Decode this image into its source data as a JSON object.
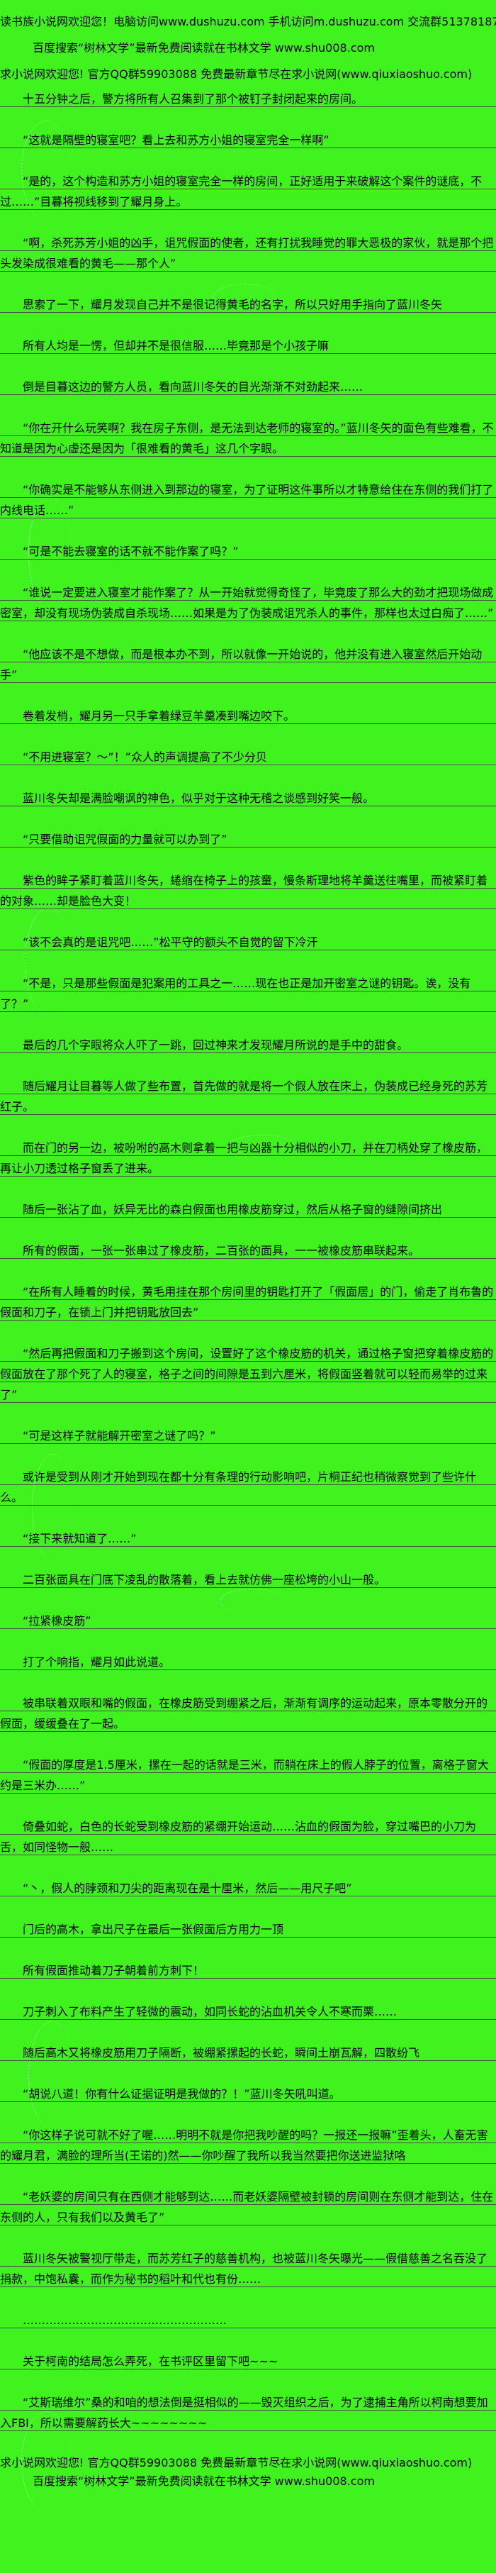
{
  "page": {
    "background_color": "#40F21E",
    "rule_line_color": "#4b4b4b",
    "text_color": "#000000"
  },
  "header": {
    "lines": [
      "读书族小说网欢迎您！电脑访问www.dushuzu.com 手机访问m.dushuzu.com 交流群513781872",
      "百度搜索“树林文学”最新免费阅读就在书林文学 www.shu008.com",
      "求小说网欢迎您! 官方QQ群59903088 免费最新章节尽在求小说网(www.qiuxiaoshuo.com)"
    ]
  },
  "content": {
    "paragraphs": [
      "十五分钟之后，警方将所有人召集到了那个被钉子封闭起来的房间。",
      "“这就是隔壁的寝室吧？看上去和苏方小姐的寝室完全一样啊”",
      "“是的，这个构造和苏方小姐的寝室完全一样的房间，正好适用于来破解这个案件的谜底，不过……”目暮将视线移到了耀月身上。",
      "“啊，杀死苏芳小姐的凶手，诅咒假面的使者，还有打扰我睡觉的罪大恶极的家伙，就是那个把头发染成很难看的黄毛——那个人”",
      "思索了一下，耀月发现自己并不是很记得黄毛的名字，所以只好用手指向了蓝川冬矢",
      "所有人均是一愣，但却并不是很信服……毕竟那是个小孩子嘛",
      "倒是目暮这边的警方人员，看向蓝川冬矢的目光渐渐不对劲起来……",
      "“你在开什么玩笑啊？我在房子东侧，是无法到达老师的寝室的。”蓝川冬矢的面色有些难看，不知道是因为心虚还是因为「很难看的黄毛」这几个字眼。",
      "“你确实是不能够从东侧进入到那边的寝室，为了证明这件事所以才特意给住在东侧的我们打了内线电话……”",
      "“可是不能去寝室的话不就不能作案了吗？”",
      "“谁说一定要进入寝室才能作案了？从一开始就觉得奇怪了，毕竟废了那么大的劲才把现场做成密室，却没有现场伪装成自杀现场……如果是为了伪装成诅咒杀人的事件，那样也太过白痴了……”",
      "“他应该不是不想做，而是根本办不到，所以就像一开始说的，他并没有进入寝室然后开始动手”",
      "卷着发梢，耀月另一只手拿着绿豆羊羹凑到嘴边咬下。",
      "“不用进寝室？～”！”众人的声调提高了不少分贝",
      "蓝川冬矢却是满脸嘲讽的神色，似乎对于这种无稽之谈感到好笑一般。",
      "“只要借助诅咒假面的力量就可以办到了”",
      "紫色的眸子紧盯着蓝川冬矢，蜷缩在椅子上的孩童，慢条斯理地将羊羹送往嘴里，而被紧盯着的对象……却是脸色大变！",
      "“该不会真的是诅咒吧……”松平守的额头不自觉的留下冷汗",
      "“不是，只是那些假面是犯案用的工具之一……现在也正是加开密室之谜的钥匙。诶，没有了？”",
      "最后的几个字眼将众人吓了一跳，回过神来才发现耀月所说的是手中的甜食。",
      "随后耀月让目暮等人做了些布置，首先做的就是将一个假人放在床上，伪装成已经身死的苏芳红子。",
      "而在门的另一边，被吩咐的高木则拿着一把与凶器十分相似的小刀，并在刀柄处穿了橡皮筋，再让小刀透过格子窗丢了进来。",
      "随后一张沾了血，妖异无比的森白假面也用橡皮筋穿过，然后从格子窗的缝隙间挤出",
      "所有的假面，一张一张串过了橡皮筋，二百张的面具，一一被橡皮筋串联起来。",
      "“在所有人睡着的时候，黄毛用挂在那个房间里的钥匙打开了「假面居」的门，偷走了肖布鲁的假面和刀子，在锁上门并把钥匙放回去”",
      "“然后再把假面和刀子搬到这个房间，设置好了这个橡皮筋的机关，通过格子窗把穿着橡皮筋的假面放在了那个死了人的寝室，格子之间的间隙是五到六厘米，将假面竖着就可以轻而易举的过来了”",
      "“可是这样子就能解开密室之谜了吗？”",
      "或许是受到从刚才开始到现在都十分有条理的行动影响吧，片桐正纪也稍微察觉到了些许什么。",
      "“接下来就知道了……”",
      "二百张面具在门底下凌乱的散落着，看上去就仿佛一座松垮的小山一般。",
      "“拉紧橡皮筋”",
      "打了个响指，耀月如此说道。",
      "被串联着双眼和嘴的假面，在橡皮筋受到绷紧之后，渐渐有调序的运动起来，原本零散分开的假面，缓缓叠在了一起。",
      "“假面的厚度是1.5厘米，摞在一起的话就是三米，而躺在床上的假人脖子的位置，离格子窗大约是三米办……”",
      "倚叠如蛇，白色的长蛇受到橡皮筋的紧绷开始运动……沾血的假面为脸，穿过嘴巴的小刀为舌，如同怪物一般……",
      "“丶，假人的脖颈和刀尖的距离现在是十厘米，然后——用尺子吧”",
      "门后的高木，拿出尺子在最后一张假面后方用力一顶",
      "所有假面推动着刀子朝着前方刺下！",
      "刀子刺入了布料产生了轻微的震动，如同长蛇的沾血机关令人不寒而栗……",
      "随后高木又将橡皮筋用刀子隔断，被绷紧摞起的长蛇，瞬间土崩瓦解，四散纷飞",
      "“胡说八道！你有什么证据证明是我做的？！”蓝川冬矢吼叫道。",
      "“你这样子说可就不好了喔……明明不就是你把我吵醒的吗？一报还一报嘛”歪着头，人畜无害的耀月君，满脸的理所当(王诺的)然——你吵醒了我所以我当然要把你送进监狱咯",
      "“老妖婆的房间只有在西侧才能够到达……而老妖婆隔壁被封锁的房间则在东侧才能到达，住在东侧的人，只有我们以及黄毛了”",
      "蓝川冬矢被警视厅带走，而苏芳红子的慈善机构，也被蓝川冬矢曝光——假借慈善之名吞没了捐款，中饱私囊，而作为秘书的稻叶和代也有份……",
      "………………………………………………",
      "关于柯南的结局怎么弄死，在书评区里留下吧~~~",
      "“艾斯瑞维尔”桑的和咱的想法倒是挺相似的——毁灭组织之后，为了逮捕主角所以柯南想要加入FBI，所以需要解药长大~~~~~~~~"
    ]
  },
  "footer": {
    "lines": [
      "求小说网欢迎您! 官方QQ群59903088 免费最新章节尽在求小说网(www.qiuxiaoshuo.com)",
      "百度搜索“树林文学”最新免费阅读就在书林文学 www.shu008.com"
    ]
  }
}
